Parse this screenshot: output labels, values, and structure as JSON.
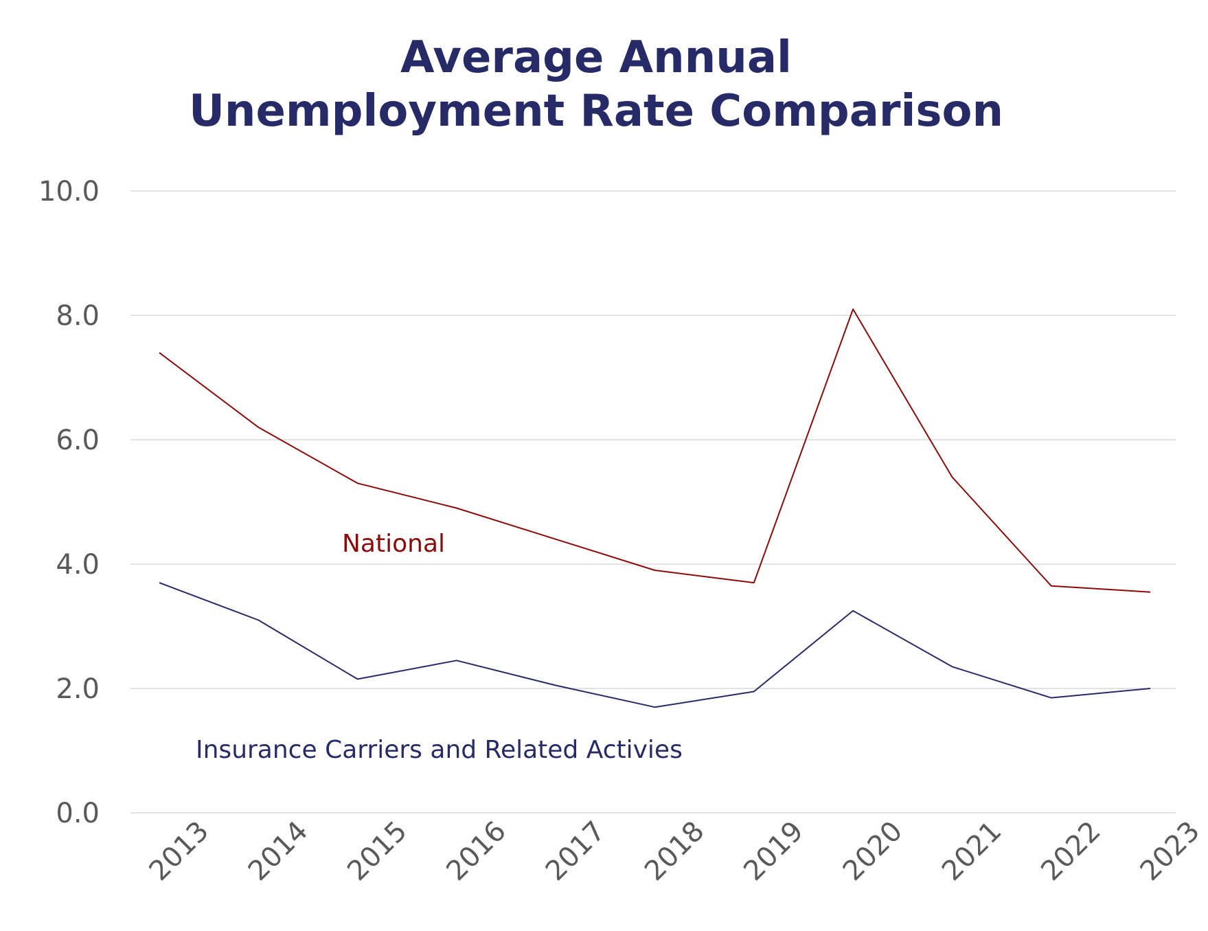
{
  "chart_data": {
    "type": "line",
    "title_lines": [
      "Average Annual",
      "Unemployment Rate Comparison"
    ],
    "x": [
      "2013",
      "2014",
      "2015",
      "2016",
      "2017",
      "2018",
      "2019",
      "2020",
      "2021",
      "2022",
      "2023"
    ],
    "y_ticks": [
      "0.0",
      "2.0",
      "4.0",
      "6.0",
      "8.0",
      "10.0"
    ],
    "ylim": [
      0,
      10
    ],
    "grid": true,
    "series": [
      {
        "name": "National",
        "color": "#8b0a0a",
        "values": [
          7.4,
          6.2,
          5.3,
          4.9,
          4.4,
          3.9,
          3.7,
          8.1,
          5.4,
          3.65,
          3.55
        ]
      },
      {
        "name": "Insurance Carriers and Related Activies",
        "color": "#262a66",
        "values": [
          3.7,
          3.1,
          2.15,
          2.45,
          2.05,
          1.7,
          1.95,
          3.25,
          2.35,
          1.85,
          2.0
        ]
      }
    ]
  }
}
